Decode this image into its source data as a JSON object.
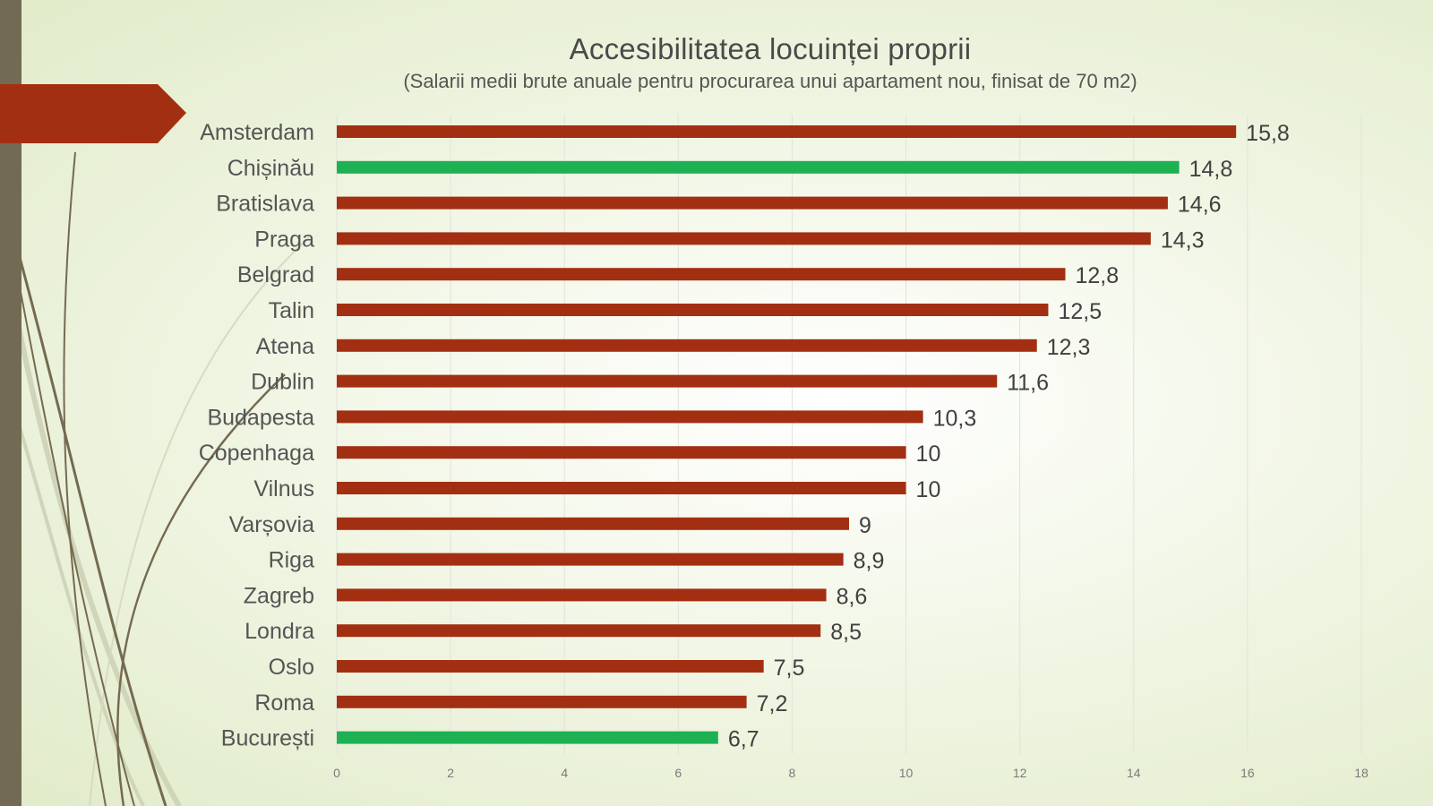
{
  "chart_data": {
    "type": "bar",
    "orientation": "horizontal",
    "title": "Accesibilitatea locuinței proprii",
    "subtitle": "(Salarii medii brute anuale pentru procurarea unui apartament nou, finisat de 70 m2)",
    "categories": [
      "Amsterdam",
      "Chișinău",
      "Bratislava",
      "Praga",
      "Belgrad",
      "Talin",
      "Atena",
      "Dublin",
      "Budapesta",
      "Copenhaga",
      "Vilnus",
      "Varșovia",
      "Riga",
      "Zagreb",
      "Londra",
      "Oslo",
      "Roma",
      "București"
    ],
    "values": [
      15.8,
      14.8,
      14.6,
      14.3,
      12.8,
      12.5,
      12.3,
      11.6,
      10.3,
      10,
      10,
      9,
      8.9,
      8.6,
      8.5,
      7.5,
      7.2,
      6.7
    ],
    "value_labels": [
      "15,8",
      "14,8",
      "14,6",
      "14,3",
      "12,8",
      "12,5",
      "12,3",
      "11,6",
      "10,3",
      "10",
      "10",
      "9",
      "8,9",
      "8,6",
      "8,5",
      "7,5",
      "7,2",
      "6,7"
    ],
    "highlighted": [
      "Chișinău",
      "București"
    ],
    "xlim": [
      0,
      18
    ],
    "xticks": [
      0,
      2,
      4,
      6,
      8,
      10,
      12,
      14,
      16,
      18
    ],
    "grid": true,
    "colors": {
      "default": "#a32f12",
      "highlight": "#1db154",
      "grid": "#e2e2dc"
    }
  },
  "theme": {
    "sidebar_color": "#726a53",
    "arrow_color": "#a32f12",
    "swirl_dark": "#756a50",
    "swirl_light": "#cbd0b4"
  }
}
